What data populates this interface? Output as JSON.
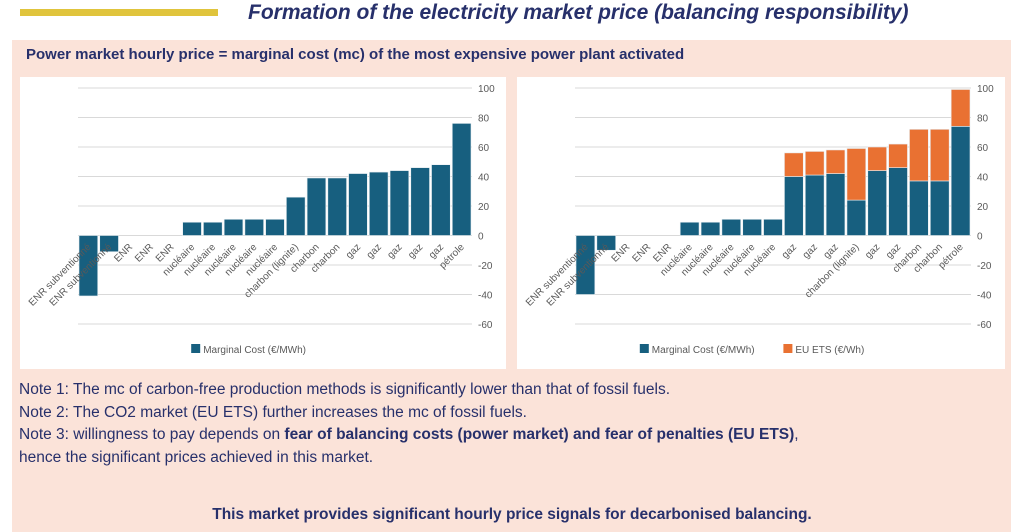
{
  "header": {
    "title": "Formation of the electricity market price (balancing responsibility)"
  },
  "subtitle": "Power market hourly price = marginal cost (mc) of the most expensive power plant activated",
  "notes": [
    {
      "text": "Note 1: The mc of carbon-free production methods is significantly lower than that of fossil fuels."
    },
    {
      "text": "Note 2: The CO2 market (EU ETS) further increases the mc of fossil fuels."
    },
    {
      "prefix": "Note 3: willingness to pay depends on ",
      "bold": "fear of balancing costs (power market) and fear of penalties (EU ETS)",
      "suffix": ","
    },
    {
      "text": "hence the significant prices achieved in this market."
    }
  ],
  "conclusion": "This market provides significant hourly price signals for decarbonised balancing.",
  "colors": {
    "marginal_cost": "#175f7f",
    "eu_ets": "#e97132"
  },
  "chart_data": [
    {
      "type": "bar",
      "title": "",
      "categories": [
        "ENR subventionné",
        "ENR subventionné",
        "ENR",
        "ENR",
        "ENR",
        "nucléaire",
        "nucléaire",
        "nucléaire",
        "nucléaire",
        "nucléaire",
        "charbon (lignite)",
        "charbon",
        "charbon",
        "gaz",
        "gaz",
        "gaz",
        "gaz",
        "gaz",
        "pétrole"
      ],
      "series": [
        {
          "name": "Marginal Cost (€/MWh)",
          "values": [
            -41,
            -11,
            0,
            0,
            0,
            9,
            9,
            11,
            11,
            11,
            26,
            39,
            39,
            42,
            43,
            44,
            46,
            48,
            76
          ]
        }
      ],
      "ylim": [
        -60,
        100
      ],
      "yticks": [
        100,
        80,
        60,
        40,
        20,
        0,
        -20,
        -40,
        -60
      ],
      "grid": true,
      "legend": "bottom"
    },
    {
      "type": "bar",
      "stacked": true,
      "title": "",
      "categories": [
        "ENR subventionné",
        "ENR subventionné",
        "ENR",
        "ENR",
        "ENR",
        "nucléaire",
        "nucléaire",
        "nucléaire",
        "nucléaire",
        "nucléaire",
        "gaz",
        "gaz",
        "gaz",
        "charbon (lignite)",
        "gaz",
        "gaz",
        "charbon",
        "charbon",
        "pétrole"
      ],
      "series": [
        {
          "name": "Marginal Cost (€/MWh)",
          "values": [
            -40,
            -10,
            0,
            0,
            0,
            9,
            9,
            11,
            11,
            11,
            40,
            41,
            42,
            24,
            44,
            46,
            37,
            37,
            74
          ]
        },
        {
          "name": "EU ETS (€/Wh)",
          "values": [
            0,
            0,
            0,
            0,
            0,
            0,
            0,
            0,
            0,
            0,
            16,
            16,
            16,
            35,
            16,
            16,
            35,
            35,
            25
          ]
        }
      ],
      "ylim": [
        -60,
        100
      ],
      "yticks": [
        100,
        80,
        60,
        40,
        20,
        0,
        -20,
        -40,
        -60
      ],
      "grid": true,
      "legend": "bottom"
    }
  ]
}
